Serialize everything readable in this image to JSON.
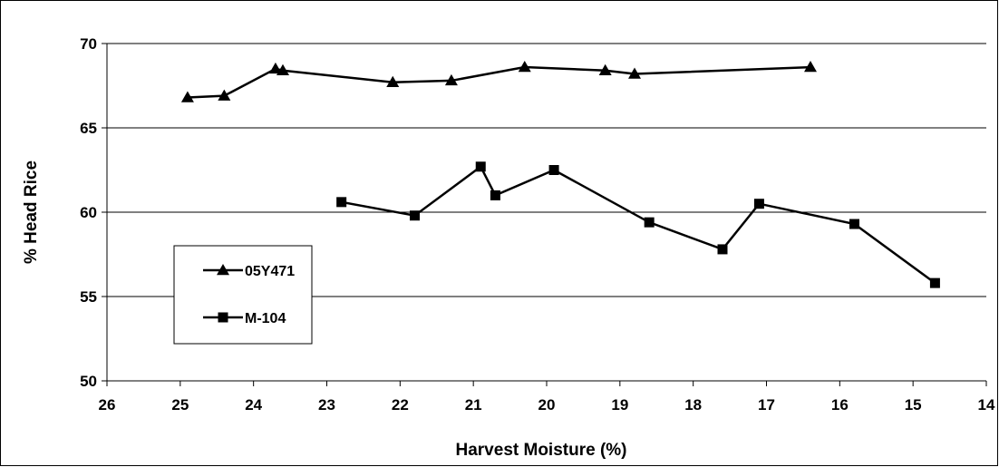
{
  "chart_data": {
    "type": "line",
    "title": "",
    "xlabel": "Harvest Moisture (%)",
    "ylabel": "% Head Rice",
    "xlim": [
      26,
      14
    ],
    "x_reversed": true,
    "ylim": [
      50,
      70
    ],
    "x_ticks": [
      "26",
      "25",
      "24",
      "23",
      "22",
      "21",
      "20",
      "19",
      "18",
      "17",
      "16",
      "15",
      "14"
    ],
    "y_ticks": [
      "70",
      "65",
      "60",
      "55",
      "50"
    ],
    "y_ticks_values": [
      70,
      65,
      60,
      55,
      50
    ],
    "x_ticks_values": [
      26,
      25,
      24,
      23,
      22,
      21,
      20,
      19,
      18,
      17,
      16,
      15,
      14
    ],
    "grid": "horizontal",
    "legend_position": "left",
    "series": [
      {
        "name": "05Y471",
        "marker": "triangle",
        "color": "#000000",
        "x": [
          24.9,
          24.4,
          23.7,
          23.6,
          22.1,
          21.3,
          20.3,
          19.2,
          18.8,
          16.4
        ],
        "y": [
          66.8,
          66.9,
          68.5,
          68.4,
          67.7,
          67.8,
          68.6,
          68.4,
          68.2,
          68.6
        ]
      },
      {
        "name": "M-104",
        "marker": "square",
        "color": "#000000",
        "x": [
          22.8,
          21.8,
          20.9,
          20.7,
          19.9,
          18.6,
          17.6,
          17.1,
          15.8,
          14.7
        ],
        "y": [
          60.6,
          59.8,
          62.7,
          61.0,
          62.5,
          59.4,
          57.8,
          60.5,
          59.3,
          55.8
        ]
      }
    ]
  }
}
